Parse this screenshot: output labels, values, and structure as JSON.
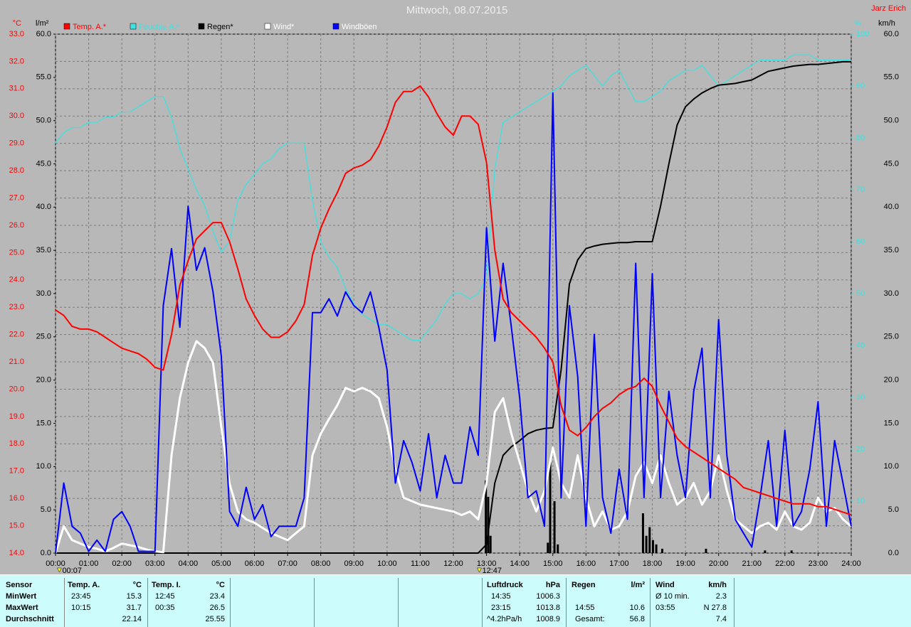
{
  "chart_data": {
    "type": "line",
    "title": "Mittwoch, 08.07.2015",
    "author": "Jarz Erich",
    "y_label": "°C",
    "y2_label": "l/m²",
    "y3_label": "%",
    "y4_label": "km/h",
    "xlim": [
      0,
      24
    ],
    "xticks": [
      {
        "value": 0,
        "label": "00:00"
      },
      {
        "value": 1,
        "label": "01:00"
      },
      {
        "value": 2,
        "label": "02:00"
      },
      {
        "value": 3,
        "label": "03:00"
      },
      {
        "value": 4,
        "label": "04:00"
      },
      {
        "value": 5,
        "label": "05:00"
      },
      {
        "value": 6,
        "label": "06:00"
      },
      {
        "value": 7,
        "label": "07:00"
      },
      {
        "value": 8,
        "label": "08:00"
      },
      {
        "value": 9,
        "label": "09:00"
      },
      {
        "value": 10,
        "label": "10:00"
      },
      {
        "value": 11,
        "label": "11:00"
      },
      {
        "value": 12,
        "label": "12:00"
      },
      {
        "value": 13,
        "label": "13:00"
      },
      {
        "value": 14,
        "label": "14:00"
      },
      {
        "value": 15,
        "label": "15:00"
      },
      {
        "value": 16,
        "label": "16:00"
      },
      {
        "value": 17,
        "label": "17:00"
      },
      {
        "value": 18,
        "label": "18:00"
      },
      {
        "value": 19,
        "label": "19:00"
      },
      {
        "value": 20,
        "label": "20:00"
      },
      {
        "value": 21,
        "label": "21:00"
      },
      {
        "value": 22,
        "label": "22:00"
      },
      {
        "value": 23,
        "label": "23:00"
      },
      {
        "value": 24,
        "label": "24:00"
      }
    ],
    "ylim": [
      14,
      33
    ],
    "yticks": [
      {
        "value": 14,
        "label": "14.0"
      },
      {
        "value": 15,
        "label": "15.0"
      },
      {
        "value": 16,
        "label": "16.0"
      },
      {
        "value": 17,
        "label": "17.0"
      },
      {
        "value": 18,
        "label": "18.0"
      },
      {
        "value": 19,
        "label": "19.0"
      },
      {
        "value": 20,
        "label": "20.0"
      },
      {
        "value": 21,
        "label": "21.0"
      },
      {
        "value": 22,
        "label": "22.0"
      },
      {
        "value": 23,
        "label": "23.0"
      },
      {
        "value": 24,
        "label": "24.0"
      },
      {
        "value": 25,
        "label": "25.0"
      },
      {
        "value": 26,
        "label": "26.0"
      },
      {
        "value": 27,
        "label": "27.0"
      },
      {
        "value": 28,
        "label": "28.0"
      },
      {
        "value": 29,
        "label": "29.0"
      },
      {
        "value": 30,
        "label": "30.0"
      },
      {
        "value": 31,
        "label": "31.0"
      },
      {
        "value": 32,
        "label": "32.0"
      },
      {
        "value": 33,
        "label": "33.0"
      }
    ],
    "y2lim": [
      0,
      60
    ],
    "y2ticks": [
      {
        "value": 0,
        "label": "0.0"
      },
      {
        "value": 5,
        "label": "5.0"
      },
      {
        "value": 10,
        "label": "10.0"
      },
      {
        "value": 15,
        "label": "15.0"
      },
      {
        "value": 20,
        "label": "20.0"
      },
      {
        "value": 25,
        "label": "25.0"
      },
      {
        "value": 30,
        "label": "30.0"
      },
      {
        "value": 35,
        "label": "35.0"
      },
      {
        "value": 40,
        "label": "40.0"
      },
      {
        "value": 45,
        "label": "45.0"
      },
      {
        "value": 50,
        "label": "50.0"
      },
      {
        "value": 55,
        "label": "55.0"
      },
      {
        "value": 60,
        "label": "60.0"
      }
    ],
    "y3lim": [
      0,
      100
    ],
    "y3ticks": [
      10,
      20,
      30,
      40,
      50,
      60,
      70,
      80,
      90,
      100
    ],
    "y4lim": [
      0,
      60
    ],
    "y4ticks": [
      {
        "value": 0,
        "label": "0.0"
      },
      {
        "value": 5,
        "label": "5.0"
      },
      {
        "value": 10,
        "label": "10.0"
      },
      {
        "value": 15,
        "label": "15.0"
      },
      {
        "value": 20,
        "label": "20.0"
      },
      {
        "value": 25,
        "label": "25.0"
      },
      {
        "value": 30,
        "label": "30.0"
      },
      {
        "value": 35,
        "label": "35.0"
      },
      {
        "value": 40,
        "label": "40.0"
      },
      {
        "value": 45,
        "label": "45.0"
      },
      {
        "value": 50,
        "label": "50.0"
      },
      {
        "value": 55,
        "label": "55.0"
      },
      {
        "value": 60,
        "label": "60.0"
      }
    ],
    "grid": true,
    "markers": [
      {
        "value": 0.117,
        "label": "00:07"
      },
      {
        "value": 12.783,
        "label": "12:47"
      }
    ],
    "x": [
      0,
      0.25,
      0.5,
      0.75,
      1,
      1.25,
      1.5,
      1.75,
      2,
      2.25,
      2.5,
      2.75,
      3,
      3.25,
      3.5,
      3.75,
      4,
      4.25,
      4.5,
      4.75,
      5,
      5.25,
      5.5,
      5.75,
      6,
      6.25,
      6.5,
      6.75,
      7,
      7.25,
      7.5,
      7.75,
      8,
      8.25,
      8.5,
      8.75,
      9,
      9.25,
      9.5,
      9.75,
      10,
      10.25,
      10.5,
      10.75,
      11,
      11.25,
      11.5,
      11.75,
      12,
      12.25,
      12.5,
      12.75,
      13,
      13.25,
      13.5,
      13.75,
      14,
      14.25,
      14.5,
      14.75,
      15,
      15.25,
      15.5,
      15.75,
      16,
      16.25,
      16.5,
      16.75,
      17,
      17.25,
      17.5,
      17.75,
      18,
      18.25,
      18.5,
      18.75,
      19,
      19.25,
      19.5,
      19.75,
      20,
      20.25,
      20.5,
      20.75,
      21,
      21.25,
      21.5,
      21.75,
      22,
      22.25,
      22.5,
      22.75,
      23,
      23.25,
      23.5,
      23.75,
      24
    ],
    "series": [
      {
        "name": "Temp. A.*",
        "color": "#ff0000",
        "axis": "y",
        "values": [
          22.9,
          22.7,
          22.3,
          22.2,
          22.2,
          22.1,
          21.9,
          21.7,
          21.5,
          21.4,
          21.3,
          21.1,
          20.8,
          20.7,
          22.0,
          23.8,
          24.7,
          25.5,
          25.8,
          26.1,
          26.1,
          25.4,
          24.4,
          23.3,
          22.7,
          22.2,
          21.9,
          21.9,
          22.1,
          22.5,
          23.1,
          24.9,
          25.9,
          26.6,
          27.2,
          27.9,
          28.1,
          28.2,
          28.4,
          28.9,
          29.6,
          30.5,
          30.9,
          30.9,
          31.1,
          30.7,
          30.1,
          29.6,
          29.3,
          30.0,
          30.0,
          29.7,
          28.3,
          25.1,
          23.3,
          22.8,
          22.5,
          22.2,
          21.9,
          21.5,
          21.0,
          19.4,
          18.5,
          18.3,
          18.6,
          19.0,
          19.3,
          19.5,
          19.8,
          20.0,
          20.1,
          20.4,
          20.1,
          19.4,
          18.8,
          18.2,
          17.9,
          17.7,
          17.5,
          17.3,
          17.1,
          16.9,
          16.7,
          16.4,
          16.3,
          16.2,
          16.1,
          16.0,
          15.9,
          15.8,
          15.8,
          15.8,
          15.7,
          15.7,
          15.6,
          15.5,
          15.4
        ]
      },
      {
        "name": "Feuchte A.*",
        "color": "#40e0e0",
        "axis": "y3",
        "values": [
          79,
          81,
          82,
          82,
          83,
          83,
          84,
          84,
          85,
          85,
          86,
          87,
          88,
          88,
          84,
          78,
          74,
          70,
          67,
          62,
          58,
          60,
          68,
          71,
          73,
          75,
          76,
          78,
          79,
          79,
          79,
          68,
          60,
          57,
          55,
          51,
          48,
          46,
          45,
          44,
          44,
          43,
          42,
          41,
          41,
          43,
          45,
          48,
          50,
          50,
          49,
          50,
          53,
          74,
          83,
          84,
          85,
          86,
          87,
          88,
          89,
          90,
          92,
          93,
          94,
          92,
          90,
          92,
          93,
          90,
          87,
          87,
          88,
          89,
          91,
          92,
          93,
          93,
          94,
          92,
          90,
          91,
          92,
          93,
          94,
          95,
          95,
          95,
          95,
          96,
          96,
          96,
          95,
          95,
          95,
          95,
          95
        ]
      },
      {
        "name": "Regen*",
        "color": "#000000",
        "axis": "y2",
        "values": [
          0,
          0,
          0,
          0,
          0,
          0,
          0,
          0,
          0,
          0,
          0,
          0,
          0,
          0,
          0,
          0,
          0,
          0,
          0,
          0,
          0,
          0,
          0,
          0,
          0,
          0,
          0,
          0,
          0,
          0,
          0,
          0,
          0,
          0,
          0,
          0,
          0,
          0,
          0,
          0,
          0,
          0,
          0,
          0,
          0,
          0,
          0,
          0,
          0,
          0,
          0,
          0,
          1.0,
          8.1,
          11.3,
          12.3,
          13.0,
          13.8,
          14.2,
          14.4,
          14.5,
          21.2,
          31.1,
          33.9,
          35.2,
          35.5,
          35.7,
          35.8,
          35.9,
          35.9,
          36.0,
          36.0,
          36.0,
          40.1,
          45.0,
          49.5,
          51.6,
          52.5,
          53.2,
          53.7,
          54.1,
          54.2,
          54.3,
          54.5,
          54.7,
          55.2,
          55.7,
          55.9,
          56.1,
          56.3,
          56.4,
          56.5,
          56.5,
          56.6,
          56.7,
          56.8,
          56.8
        ]
      },
      {
        "name": "Wind*",
        "color": "#ffffff",
        "axis": "y4",
        "values": [
          0,
          3.1,
          1.5,
          1.1,
          0.7,
          0.5,
          0.2,
          0.6,
          1.1,
          0.9,
          0.7,
          0.4,
          0.2,
          0.1,
          11.3,
          17.9,
          22.0,
          24.5,
          23.7,
          22.0,
          14.6,
          8.0,
          4.8,
          3.9,
          3.5,
          2.9,
          2.3,
          1.9,
          1.5,
          2.3,
          3.1,
          11.3,
          13.8,
          15.5,
          17.1,
          19.1,
          18.7,
          19.1,
          18.7,
          17.9,
          14.6,
          9.7,
          6.4,
          6.0,
          5.6,
          5.4,
          5.2,
          5.0,
          4.8,
          4.4,
          4.8,
          3.9,
          8.1,
          16.3,
          17.9,
          13.8,
          10.5,
          7.2,
          4.8,
          7.2,
          12.2,
          8.1,
          6.4,
          11.3,
          6.4,
          3.1,
          4.8,
          2.7,
          3.1,
          4.8,
          8.9,
          10.5,
          8.1,
          11.3,
          8.1,
          5.6,
          6.4,
          8.1,
          5.6,
          7.2,
          11.3,
          7.2,
          3.9,
          3.1,
          2.3,
          3.1,
          3.5,
          2.7,
          4.8,
          3.1,
          2.7,
          3.5,
          6.4,
          4.8,
          5.2,
          3.9,
          3.1
        ]
      },
      {
        "name": "Windböen",
        "color": "#0000ff",
        "axis": "y4",
        "values": [
          0,
          8.1,
          3.1,
          2.3,
          0.2,
          1.5,
          0.2,
          3.9,
          4.8,
          3.1,
          0.2,
          0.2,
          0.2,
          28.6,
          35.2,
          26.1,
          40.1,
          32.7,
          35.3,
          30.2,
          22.8,
          4.8,
          3.1,
          7.6,
          3.9,
          5.6,
          1.9,
          3.1,
          3.1,
          3.1,
          6.4,
          27.8,
          27.8,
          29.4,
          27.4,
          30.2,
          28.6,
          27.8,
          30.2,
          26.1,
          21.2,
          8.1,
          13.0,
          10.5,
          7.2,
          13.8,
          6.4,
          11.3,
          8.1,
          8.1,
          14.6,
          11.3,
          37.6,
          24.5,
          33.5,
          26.1,
          17.9,
          6.4,
          7.2,
          3.1,
          53.2,
          6.4,
          28.6,
          20.4,
          3.1,
          25.3,
          6.4,
          2.3,
          9.7,
          3.9,
          33.5,
          6.4,
          32.3,
          6.4,
          18.7,
          11.3,
          6.4,
          18.7,
          23.7,
          6.4,
          27.0,
          11.3,
          3.9,
          2.3,
          0.7,
          6.4,
          13.0,
          3.1,
          14.2,
          3.1,
          4.8,
          9.7,
          17.5,
          3.1,
          13.0,
          8.1,
          3.1
        ]
      }
    ],
    "rain_bars": {
      "color": "#000000",
      "axis": "y2",
      "x": [
        12.98,
        13.05,
        13.12,
        14.85,
        14.92,
        15.05,
        15.15,
        17.72,
        17.82,
        17.92,
        18.02,
        18.12,
        18.3,
        19.62,
        21.4,
        22.2
      ],
      "values": [
        8.4,
        6.5,
        2.0,
        1.2,
        10.6,
        6.0,
        1.0,
        4.6,
        2.0,
        3.0,
        1.5,
        1.0,
        0.5,
        0.5,
        0.3,
        0.3
      ]
    }
  },
  "table": {
    "header": [
      "Sensor",
      "Temp. A.",
      "°C",
      "Temp. I.",
      "°C",
      "Luftdruck",
      "hPa",
      "Regen",
      "l/m²",
      "Wind",
      "km/h"
    ],
    "rows": [
      [
        "MinWert",
        "23:45",
        "15.3",
        "12:45",
        "23.4",
        "14:35",
        "1006.3",
        null,
        null,
        "Ø 10 min.",
        "2.3"
      ],
      [
        "MaxWert",
        "10:15",
        "31.7",
        "00:35",
        "26.5",
        "23:15",
        "1013.8",
        "14:55",
        "10.6",
        "03:55",
        "N 27.8"
      ],
      [
        "Durchschnitt",
        null,
        "22.14",
        null,
        "25.55",
        "^4.2hPa/h",
        "1008.9",
        "Gesamt:",
        "56.8",
        null,
        "7.4"
      ]
    ]
  }
}
